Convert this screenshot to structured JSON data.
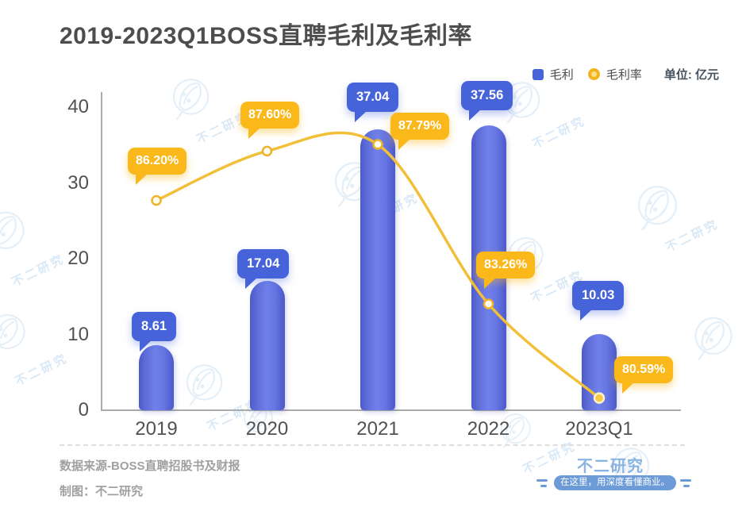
{
  "title": "2019-2023Q1BOSS直聘毛利及毛利率",
  "legend": {
    "bar_label": "毛利",
    "line_label": "毛利率",
    "unit_label": "单位: 亿元"
  },
  "chart_data": {
    "type": "bar+line",
    "title": "2019-2023Q1BOSS直聘毛利及毛利率",
    "categories": [
      "2019",
      "2020",
      "2021",
      "2022",
      "2023Q1"
    ],
    "series": [
      {
        "name": "毛利",
        "type": "bar",
        "unit": "亿元",
        "values": [
          8.61,
          17.04,
          37.04,
          37.56,
          10.03
        ],
        "labels": [
          "8.61",
          "17.04",
          "37.04",
          "37.56",
          "10.03"
        ],
        "color": "#4763da"
      },
      {
        "name": "毛利率",
        "type": "line",
        "unit": "%",
        "values": [
          86.2,
          87.6,
          87.79,
          83.26,
          80.59
        ],
        "labels": [
          "86.20%",
          "87.60%",
          "87.79%",
          "83.26%",
          "80.59%"
        ],
        "color": "#f2bf39"
      }
    ],
    "y_axis": {
      "ticks": [
        0,
        10,
        20,
        30,
        40
      ],
      "range": [
        0,
        40
      ]
    },
    "grid": false,
    "legend_position": "top-right"
  },
  "footer": {
    "source": "数据来源-BOSS直聘招股书及财报",
    "credit": "制图：不二研究",
    "brand": "不二研究",
    "brand_tagline": "在这里，用深度看懂商业。"
  },
  "watermark": {
    "label": "不二研究"
  },
  "colors": {
    "bar_dark": "#4c59c9",
    "bar_light": "#7181ea",
    "bubble_blue": "#4763da",
    "bubble_yellow": "#fab81b",
    "line": "#f2bf39",
    "dot_stroke": "#efb32a",
    "dot_fill": "#fffdf2",
    "title_text": "#4d4d4d",
    "axis_text": "#515151",
    "axis_line": "#ababab",
    "footer_text": "#a0a0a0",
    "brand_blue": "#8ab4e2",
    "badge_bg": "#6d9bd8",
    "watermark": "#cfe3f4"
  }
}
